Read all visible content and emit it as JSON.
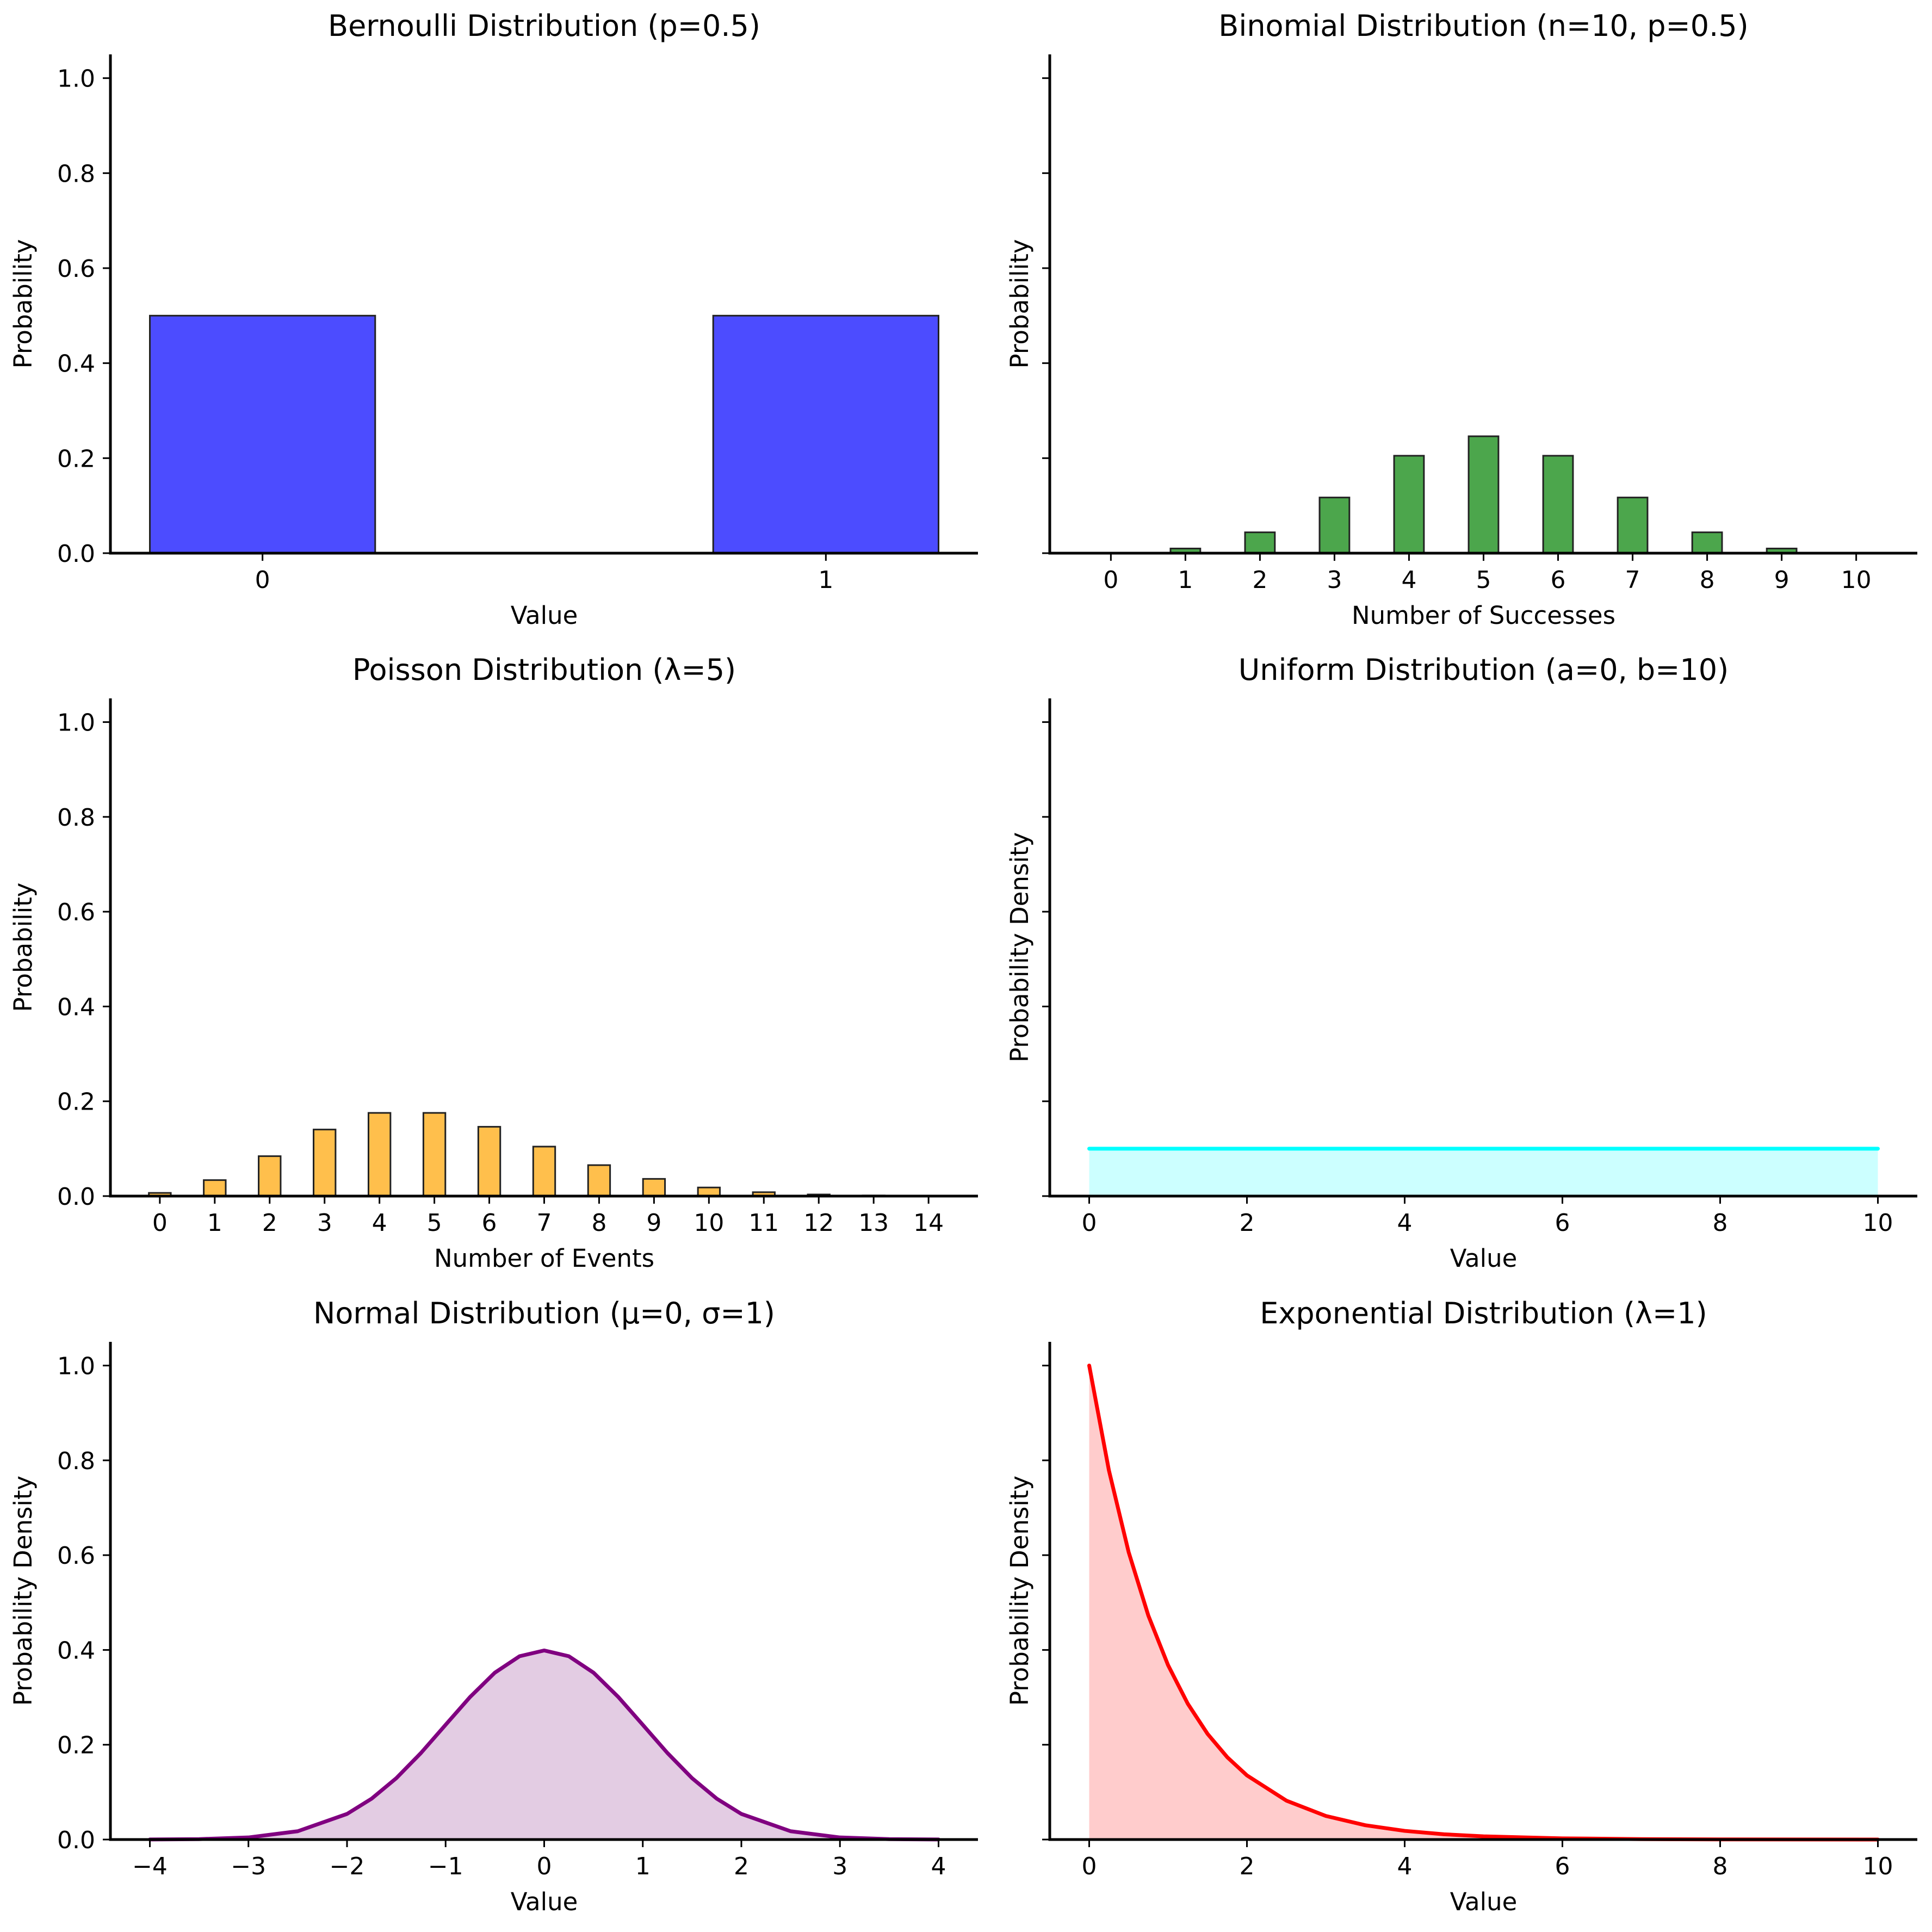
{
  "chart_data": [
    {
      "type": "bar",
      "title": "Bernoulli Distribution (p=0.5)",
      "xlabel": "Value",
      "ylabel": "Probability",
      "categories": [
        "0",
        "1"
      ],
      "x": [
        0,
        1
      ],
      "values": [
        0.5,
        0.5
      ],
      "bar_width": 0.4,
      "xlim": [
        -0.27,
        1.27
      ],
      "ylim": [
        0,
        1.05
      ],
      "xticks": [
        0,
        1
      ],
      "yticks": [
        0.0,
        0.2,
        0.4,
        0.6,
        0.8,
        1.0
      ],
      "ytick_labels": [
        "0.0",
        "0.2",
        "0.4",
        "0.6",
        "0.8",
        "1.0"
      ],
      "color": "#4c4cff",
      "edge_color": "#222222",
      "grid": false
    },
    {
      "type": "bar",
      "title": "Binomial Distribution (n=10, p=0.5)",
      "xlabel": "Number of Successes",
      "ylabel": "Probability",
      "categories": [
        "0",
        "1",
        "2",
        "3",
        "4",
        "5",
        "6",
        "7",
        "8",
        "9",
        "10"
      ],
      "x": [
        0,
        1,
        2,
        3,
        4,
        5,
        6,
        7,
        8,
        9,
        10
      ],
      "values": [
        0.001,
        0.0098,
        0.0439,
        0.1172,
        0.2051,
        0.2461,
        0.2051,
        0.1172,
        0.0439,
        0.0098,
        0.001
      ],
      "bar_width": 0.4,
      "xlim": [
        -0.82,
        10.82
      ],
      "ylim": [
        0,
        1.05
      ],
      "xticks": [
        0,
        1,
        2,
        3,
        4,
        5,
        6,
        7,
        8,
        9,
        10
      ],
      "yticks": [
        0.0,
        0.2,
        0.4,
        0.6,
        0.8,
        1.0
      ],
      "ytick_labels": [],
      "color": "#4ca64c",
      "edge_color": "#222222",
      "grid": false
    },
    {
      "type": "bar",
      "title": "Poisson Distribution (λ=5)",
      "xlabel": "Number of Events",
      "ylabel": "Probability",
      "categories": [
        "0",
        "1",
        "2",
        "3",
        "4",
        "5",
        "6",
        "7",
        "8",
        "9",
        "10",
        "11",
        "12",
        "13",
        "14"
      ],
      "x": [
        0,
        1,
        2,
        3,
        4,
        5,
        6,
        7,
        8,
        9,
        10,
        11,
        12,
        13,
        14
      ],
      "values": [
        0.0067,
        0.0337,
        0.0842,
        0.1404,
        0.1755,
        0.1755,
        0.1462,
        0.1044,
        0.0653,
        0.0363,
        0.0181,
        0.0082,
        0.0034,
        0.0013,
        0.0005
      ],
      "bar_width": 0.4,
      "xlim": [
        -0.9,
        14.9
      ],
      "ylim": [
        0,
        1.05
      ],
      "xticks": [
        0,
        1,
        2,
        3,
        4,
        5,
        6,
        7,
        8,
        9,
        10,
        11,
        12,
        13,
        14
      ],
      "yticks": [
        0.0,
        0.2,
        0.4,
        0.6,
        0.8,
        1.0
      ],
      "ytick_labels": [
        "0.0",
        "0.2",
        "0.4",
        "0.6",
        "0.8",
        "1.0"
      ],
      "color": "#ffbf4c",
      "edge_color": "#222222",
      "grid": false
    },
    {
      "type": "area",
      "title": "Uniform Distribution (a=0, b=10)",
      "xlabel": "Value",
      "ylabel": "Probability Density",
      "x": [
        0,
        10
      ],
      "y": [
        0.1,
        0.1
      ],
      "xlim": [
        -0.5,
        10.5
      ],
      "ylim": [
        0,
        1.05
      ],
      "xticks": [
        0,
        2,
        4,
        6,
        8,
        10
      ],
      "yticks": [
        0.0,
        0.2,
        0.4,
        0.6,
        0.8,
        1.0
      ],
      "ytick_labels": [],
      "line_color": "#00ffff",
      "fill_color": "#ccffff",
      "grid": false
    },
    {
      "type": "area",
      "title": "Normal Distribution (μ=0, σ=1)",
      "xlabel": "Value",
      "ylabel": "Probability Density",
      "x": [
        -4,
        -3.5,
        -3,
        -2.5,
        -2,
        -1.75,
        -1.5,
        -1.25,
        -1,
        -0.75,
        -0.5,
        -0.25,
        0,
        0.25,
        0.5,
        0.75,
        1,
        1.25,
        1.5,
        1.75,
        2,
        2.5,
        3,
        3.5,
        4
      ],
      "y": [
        0.0001,
        0.0009,
        0.0044,
        0.0175,
        0.054,
        0.0863,
        0.1295,
        0.1826,
        0.242,
        0.3011,
        0.3521,
        0.3867,
        0.3989,
        0.3867,
        0.3521,
        0.3011,
        0.242,
        0.1826,
        0.1295,
        0.0863,
        0.054,
        0.0175,
        0.0044,
        0.0009,
        0.0001
      ],
      "xlim": [
        -4.4,
        4.4
      ],
      "ylim": [
        0,
        1.05
      ],
      "xticks": [
        -4,
        -3,
        -2,
        -1,
        0,
        1,
        2,
        3,
        4
      ],
      "xtick_labels": [
        "−4",
        "−3",
        "−2",
        "−1",
        "0",
        "1",
        "2",
        "3",
        "4"
      ],
      "yticks": [
        0.0,
        0.2,
        0.4,
        0.6,
        0.8,
        1.0
      ],
      "ytick_labels": [
        "0.0",
        "0.2",
        "0.4",
        "0.6",
        "0.8",
        "1.0"
      ],
      "line_color": "#800080",
      "fill_color": "#e3cce3",
      "grid": false
    },
    {
      "type": "area",
      "title": "Exponential Distribution (λ=1)",
      "xlabel": "Value",
      "ylabel": "Probability Density",
      "x": [
        0,
        0.25,
        0.5,
        0.75,
        1,
        1.25,
        1.5,
        1.75,
        2,
        2.5,
        3,
        3.5,
        4,
        4.5,
        5,
        6,
        7,
        8,
        9,
        10
      ],
      "y": [
        1,
        0.7788,
        0.6065,
        0.4724,
        0.3679,
        0.2865,
        0.2231,
        0.1738,
        0.1353,
        0.0821,
        0.0498,
        0.0302,
        0.0183,
        0.0111,
        0.0067,
        0.0025,
        0.0009,
        0.0003,
        0.0001,
        0.0
      ],
      "xlim": [
        -0.5,
        10.5
      ],
      "ylim": [
        0,
        1.05
      ],
      "xticks": [
        0,
        2,
        4,
        6,
        8,
        10
      ],
      "yticks": [
        0.0,
        0.2,
        0.4,
        0.6,
        0.8,
        1.0
      ],
      "ytick_labels": [],
      "line_color": "#ff0000",
      "fill_color": "#ffcccc",
      "grid": false
    }
  ]
}
